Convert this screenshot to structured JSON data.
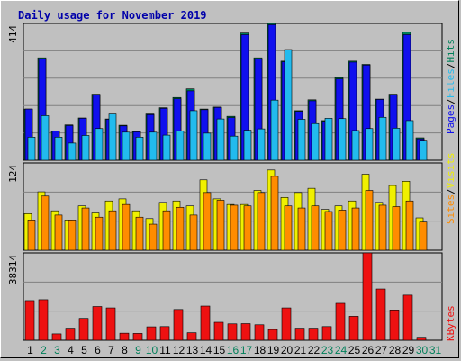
{
  "chart_data": {
    "type": "bar",
    "title": "Daily usage for November 2019",
    "days": [
      "1",
      "2",
      "3",
      "4",
      "5",
      "6",
      "7",
      "8",
      "9",
      "10",
      "11",
      "12",
      "13",
      "14",
      "15",
      "16",
      "17",
      "18",
      "19",
      "20",
      "21",
      "22",
      "23",
      "24",
      "25",
      "26",
      "27",
      "28",
      "29",
      "30",
      "31"
    ],
    "weekend_days": [
      "2",
      "3",
      "9",
      "10",
      "16",
      "17",
      "23",
      "24",
      "30",
      "31"
    ],
    "colors": {
      "background": "#c0c0c0",
      "title": "#0000aa",
      "hits": "#00805a",
      "pages": "#1010ee",
      "files": "#22bbee",
      "visits": "#f0f000",
      "sites": "#ff8c00",
      "kbytes": "#ee1111",
      "weekday_label": "#000000",
      "weekend_label": "#00805a"
    },
    "panels": [
      {
        "id": "hits_files_pages",
        "ymax": 414,
        "ymax_label": "414",
        "side_label": [
          "Pages",
          "/",
          "Files",
          "/",
          "Hits"
        ],
        "series": [
          {
            "name": "Hits",
            "values": [
              155,
              310,
              88,
              107,
              128,
              200,
              125,
              106,
              87,
              140,
              159,
              190,
              216,
              155,
              161,
              133,
              385,
              310,
              414,
              300,
              150,
              183,
              120,
              250,
              300,
              290,
              185,
              200,
              388,
              68,
              0
            ]
          },
          {
            "name": "Pages",
            "values": [
              155,
              306,
              88,
              105,
              127,
              198,
              124,
              104,
              86,
              138,
              157,
              186,
              210,
              153,
              160,
              129,
              380,
              307,
              410,
              298,
              148,
              180,
              118,
              246,
              297,
              288,
              184,
              198,
              380,
              65,
              0
            ]
          },
          {
            "name": "Files",
            "values": [
              70,
              135,
              70,
              52,
              75,
              96,
              140,
              85,
              70,
              85,
              76,
              88,
              150,
              82,
              125,
              73,
              91,
              95,
              182,
              335,
              124,
              111,
              127,
              126,
              90,
              96,
              130,
              97,
              120,
              58,
              0
            ]
          }
        ]
      },
      {
        "id": "visits_sites",
        "ymax": 124,
        "ymax_label": "124",
        "side_label": [
          "Sites",
          "/",
          "Visits"
        ],
        "series": [
          {
            "name": "Visits",
            "values": [
              52,
              83,
              56,
              43,
              63,
              53,
              70,
              73,
              56,
              45,
              68,
              70,
              63,
              100,
              73,
              65,
              65,
              85,
              114,
              75,
              82,
              88,
              58,
              63,
              70,
              108,
              68,
              92,
              98,
              46,
              0
            ]
          },
          {
            "name": "Sites",
            "values": [
              43,
              77,
              50,
              43,
              60,
              47,
              56,
              65,
              47,
              37,
              56,
              61,
              50,
              82,
              71,
              64,
              63,
              82,
              105,
              63,
              60,
              63,
              55,
              57,
              60,
              85,
              64,
              62,
              70,
              40,
              0
            ]
          }
        ]
      },
      {
        "id": "kbytes",
        "ymax": 38314,
        "ymax_label": "38314",
        "side_label": [
          "KBytes"
        ],
        "series": [
          {
            "name": "KBytes",
            "values": [
              17400,
              17800,
              2800,
              5300,
              9600,
              14800,
              14200,
              3100,
              3000,
              5900,
              6000,
              13500,
              3300,
              15000,
              7900,
              7200,
              7300,
              6800,
              4700,
              14200,
              5300,
              5300,
              6000,
              16200,
              10500,
              38314,
              22500,
              13300,
              19800,
              1300,
              0
            ]
          }
        ]
      }
    ]
  }
}
